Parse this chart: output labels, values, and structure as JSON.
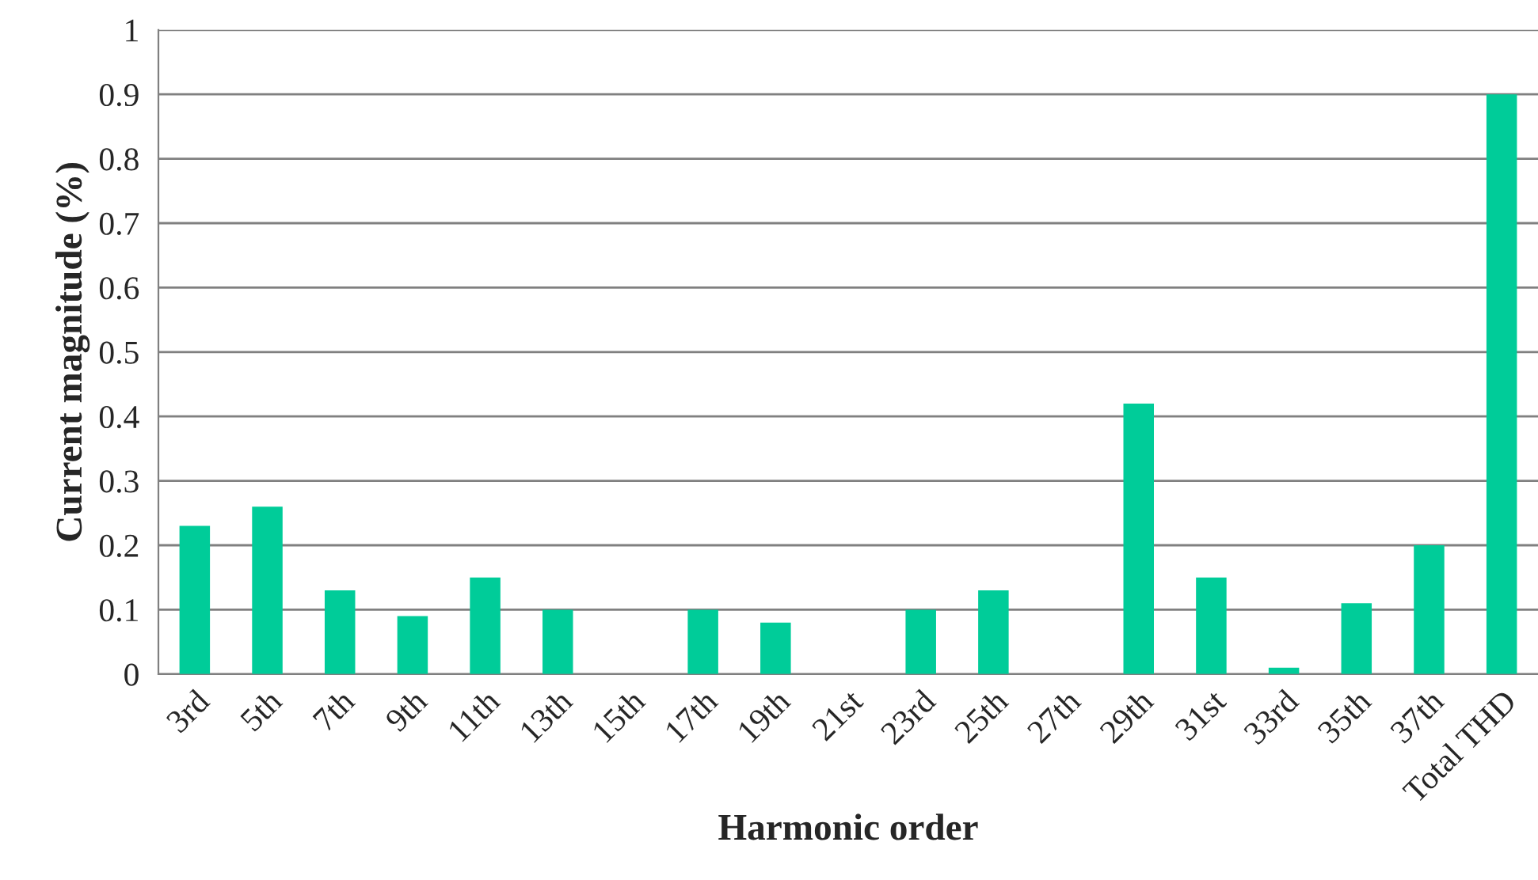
{
  "chart_data": {
    "type": "bar",
    "xlabel": "Harmonic order",
    "ylabel": "Current magnitude (%)",
    "categories": [
      "3rd",
      "5th",
      "7th",
      "9th",
      "11th",
      "13th",
      "15th",
      "17th",
      "19th",
      "21st",
      "23rd",
      "25th",
      "27th",
      "29th",
      "31st",
      "33rd",
      "35th",
      "37th",
      "Total THD"
    ],
    "values": [
      0.23,
      0.26,
      0.13,
      0.09,
      0.15,
      0.1,
      0,
      0.1,
      0.08,
      0,
      0.1,
      0.13,
      0,
      0.42,
      0.15,
      0.01,
      0.11,
      0.2,
      0.9
    ],
    "color": "#00cc99",
    "ylim": [
      0,
      1
    ],
    "yticks": [
      0,
      0.1,
      0.2,
      0.3,
      0.4,
      0.5,
      0.6,
      0.7,
      0.8,
      0.9,
      1
    ],
    "grid": "y"
  }
}
